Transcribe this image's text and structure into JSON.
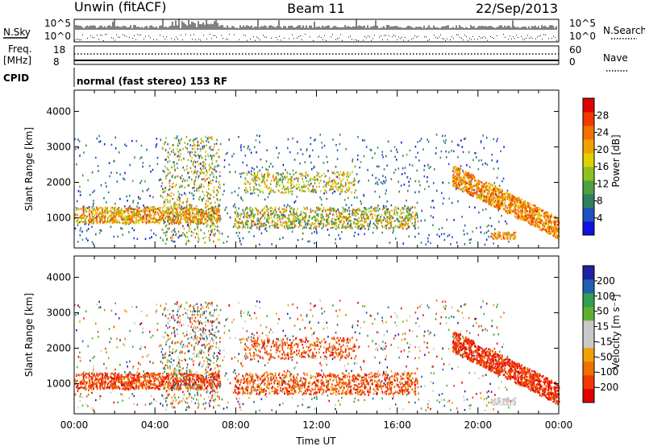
{
  "header": {
    "station": "Unwin (fitACF)",
    "beam": "Beam 11",
    "date": "22/Sep/2013"
  },
  "strip": {
    "nsky_label": "N.Sky",
    "nsearch_label": "N.Search",
    "noise_ticks": [
      "10^5",
      "10^0"
    ],
    "freq_label_1": "Freq.",
    "freq_label_2": "[MHz]",
    "freq_ticks": [
      "18",
      "8"
    ],
    "nave_label": "Nave",
    "nave_ticks": [
      "60",
      "0"
    ],
    "cpid_label": "CPID",
    "cpid_value": "normal (fast stereo) 153 RF"
  },
  "colors": {
    "power_scale": [
      "#1010e0",
      "#2050c0",
      "#308060",
      "#50a040",
      "#90c020",
      "#e0d000",
      "#f0a000",
      "#f07000",
      "#f03800",
      "#e00000"
    ],
    "velocity_scale": [
      "#e00000",
      "#f03800",
      "#f07000",
      "#f0a000",
      "#c8c8c8",
      "#c8c8c8",
      "#60b030",
      "#30a050",
      "#2060b0",
      "#2020a0"
    ]
  },
  "chart_data": [
    {
      "type": "heatmap",
      "name": "power",
      "ylabel": "Slant Range [km]",
      "x_ticks": [
        "00:00",
        "04:00",
        "08:00",
        "12:00",
        "16:00",
        "20:00",
        "00:00"
      ],
      "y_ticks": [
        "1000",
        "2000",
        "3000",
        "4000"
      ],
      "ylim": [
        150,
        4600
      ],
      "colorbar_label": "Power [dB]",
      "colorbar_ticks": [
        "4",
        "8",
        "12",
        "16",
        "20",
        "24",
        "28"
      ],
      "colorbar_range": [
        0,
        32
      ]
    },
    {
      "type": "heatmap",
      "name": "velocity",
      "ylabel": "Slant Range [km]",
      "xlabel": "Time UT",
      "x_ticks": [
        "00:00",
        "04:00",
        "08:00",
        "12:00",
        "16:00",
        "20:00",
        "00:00"
      ],
      "y_ticks": [
        "1000",
        "2000",
        "3000",
        "4000"
      ],
      "ylim": [
        150,
        4600
      ],
      "colorbar_label": "Velocity [m s⁻¹]",
      "colorbar_ticks": [
        "200",
        "100",
        "50",
        "15",
        "-15",
        "-50",
        "-100",
        "-200"
      ],
      "colorbar_range": [
        -250,
        250
      ]
    }
  ]
}
